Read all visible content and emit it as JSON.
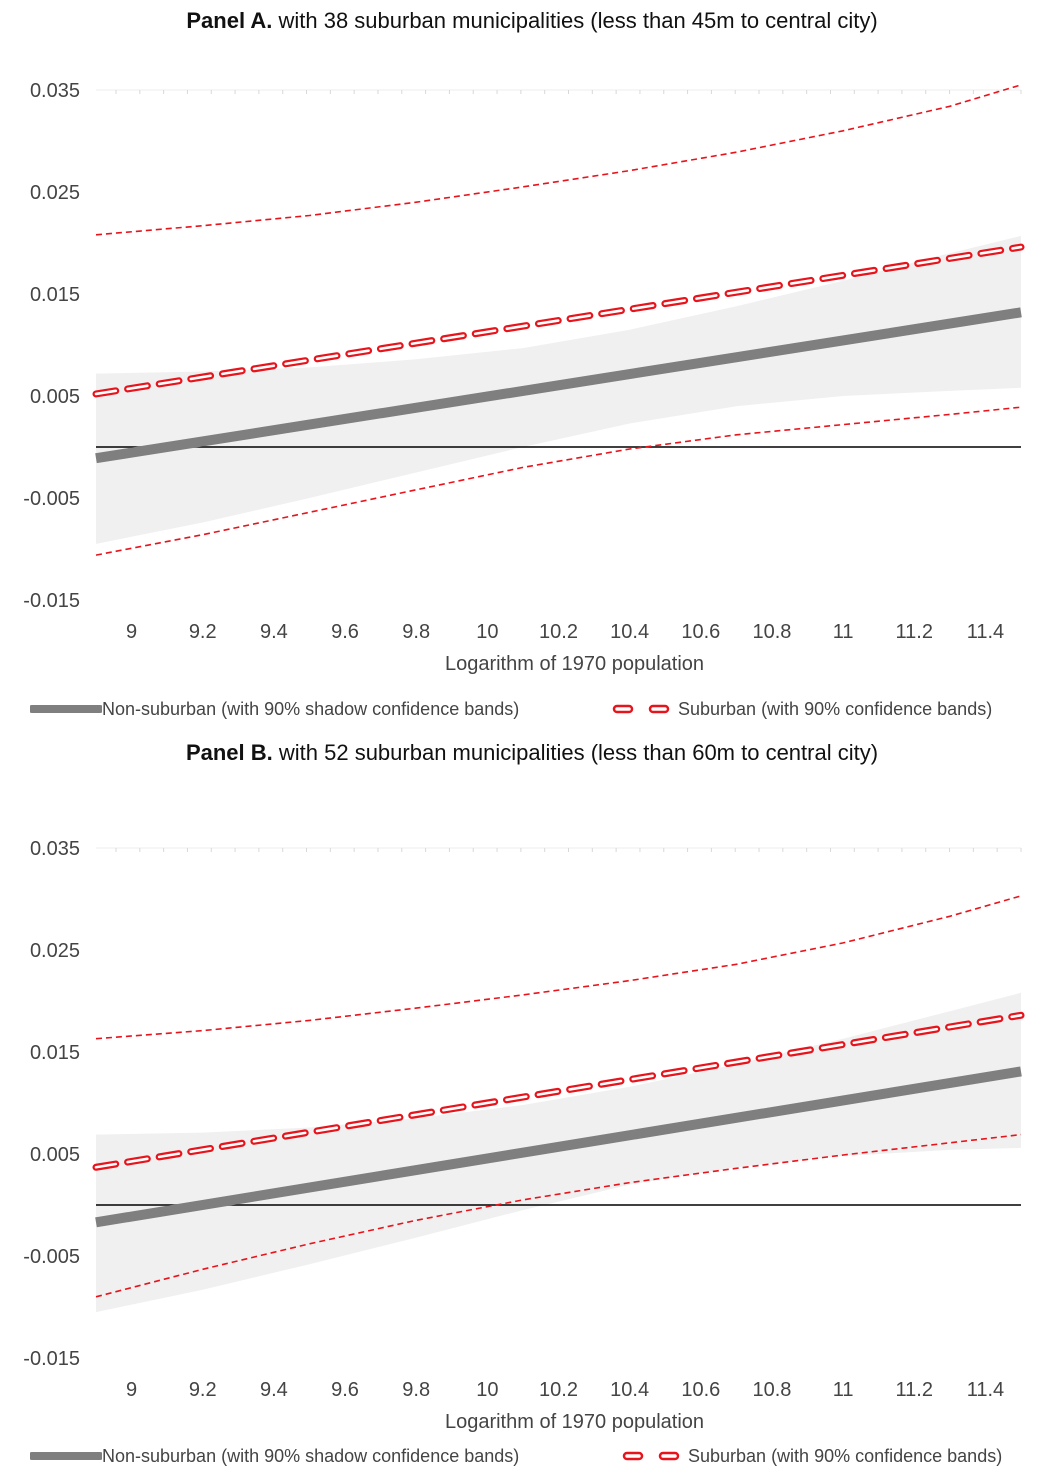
{
  "colors": {
    "non_suburban": "#7f7f7f",
    "suburban": "#e8141c",
    "band": "#f0f0f0",
    "zero_line": "#000000"
  },
  "panels": [
    {
      "title_bold": "Panel A.",
      "title_rest": " with 38 suburban municipalities (less than 45m to central city)",
      "legend": {
        "non_suburban": "Non-suburban (with 90% shadow confidence bands)",
        "suburban": "Suburban (with 90% confidence bands)"
      }
    },
    {
      "title_bold": "Panel B.",
      "title_rest": " with 52 suburban municipalities (less than 60m to central city)",
      "legend": {
        "non_suburban": "Non-suburban (with 90% shadow confidence bands)",
        "suburban": "Suburban (with 90% confidence bands)"
      }
    }
  ],
  "chart_data": [
    {
      "type": "line",
      "xlabel": "Logarithm of 1970 population",
      "ylabel": "",
      "xlim": [
        8.9,
        11.5
      ],
      "ylim": [
        -0.015,
        0.035
      ],
      "x_ticks": [
        "9",
        "9.2",
        "9.4",
        "9.6",
        "9.8",
        "10",
        "10.2",
        "10.4",
        "10.6",
        "10.8",
        "11",
        "11.2",
        "11.4"
      ],
      "y_ticks": [
        "0.035",
        "0.025",
        "0.015",
        "0.005",
        "-0.005",
        "-0.015"
      ],
      "reference_line_y": 0,
      "series": [
        {
          "name": "Non-suburban (with 90% shadow confidence bands)",
          "x": [
            8.9,
            11.5
          ],
          "values": [
            -0.0011,
            0.0132
          ],
          "band_x": [
            8.9,
            9.2,
            9.5,
            9.8,
            10.1,
            10.4,
            10.7,
            11.0,
            11.3,
            11.5
          ],
          "band_upper": [
            0.0072,
            0.0074,
            0.0078,
            0.0086,
            0.0097,
            0.0115,
            0.0138,
            0.0163,
            0.019,
            0.0207
          ],
          "band_lower": [
            -0.0095,
            -0.0074,
            -0.005,
            -0.0025,
            0.0,
            0.0023,
            0.004,
            0.005,
            0.0055,
            0.0058
          ]
        },
        {
          "name": "Suburban (with 90% confidence bands)",
          "x": [
            8.9,
            11.5
          ],
          "values": [
            0.0052,
            0.0196
          ],
          "band_x": [
            8.9,
            9.2,
            9.5,
            9.8,
            10.1,
            10.4,
            10.7,
            11.0,
            11.3,
            11.5
          ],
          "band_upper": [
            0.0208,
            0.0217,
            0.0227,
            0.024,
            0.0255,
            0.0271,
            0.0289,
            0.031,
            0.0334,
            0.0355
          ],
          "band_lower": [
            -0.0106,
            -0.0086,
            -0.0064,
            -0.0042,
            -0.002,
            -0.0002,
            0.0012,
            0.0022,
            0.0032,
            0.0039
          ]
        }
      ]
    },
    {
      "type": "line",
      "xlabel": "Logarithm of 1970 population",
      "ylabel": "",
      "xlim": [
        8.9,
        11.5
      ],
      "ylim": [
        -0.015,
        0.035
      ],
      "x_ticks": [
        "9",
        "9.2",
        "9.4",
        "9.6",
        "9.8",
        "10",
        "10.2",
        "10.4",
        "10.6",
        "10.8",
        "11",
        "11.2",
        "11.4"
      ],
      "y_ticks": [
        "0.035",
        "0.025",
        "0.015",
        "0.005",
        "-0.005",
        "-0.015"
      ],
      "reference_line_y": 0,
      "series": [
        {
          "name": "Non-suburban (with 90% shadow confidence bands)",
          "x": [
            8.9,
            11.5
          ],
          "values": [
            -0.0017,
            0.0131
          ],
          "band_x": [
            8.9,
            9.2,
            9.5,
            9.8,
            10.1,
            10.4,
            10.7,
            11.0,
            11.3,
            11.5
          ],
          "band_upper": [
            0.0069,
            0.0071,
            0.0076,
            0.0085,
            0.0098,
            0.0116,
            0.0138,
            0.0163,
            0.019,
            0.0208
          ],
          "band_lower": [
            -0.0105,
            -0.0083,
            -0.0058,
            -0.0032,
            -0.0005,
            0.002,
            0.0037,
            0.0048,
            0.0054,
            0.0056
          ]
        },
        {
          "name": "Suburban (with 90% confidence bands)",
          "x": [
            8.9,
            11.5
          ],
          "values": [
            0.0037,
            0.0186
          ],
          "band_x": [
            8.9,
            9.2,
            9.5,
            9.8,
            10.1,
            10.4,
            10.7,
            11.0,
            11.3,
            11.5
          ],
          "band_upper": [
            0.0163,
            0.0171,
            0.0181,
            0.0193,
            0.0206,
            0.022,
            0.0236,
            0.0257,
            0.0283,
            0.0303
          ],
          "band_lower": [
            -0.009,
            -0.0063,
            -0.0038,
            -0.0015,
            0.0005,
            0.0022,
            0.0036,
            0.0049,
            0.0061,
            0.0069
          ]
        }
      ]
    }
  ]
}
